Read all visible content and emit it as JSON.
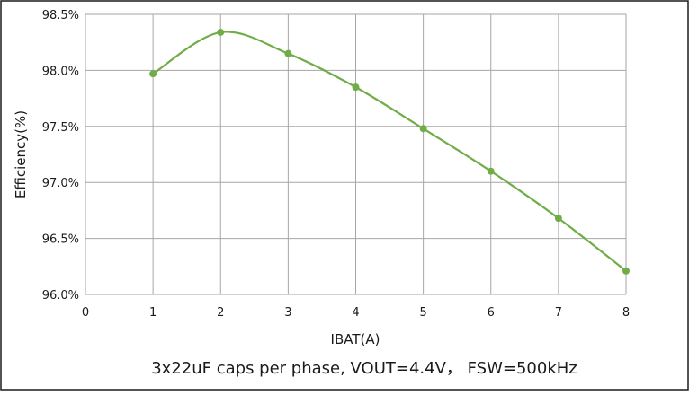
{
  "chart_data": {
    "type": "line",
    "title": "",
    "caption": "3x22uF caps per phase, VOUT=4.4V，  FSW=500kHz",
    "xlabel": "IBAT(A)",
    "ylabel": "Efficiency(%)",
    "xlim": [
      0,
      8
    ],
    "ylim": [
      96.0,
      98.5
    ],
    "x_ticks": [
      "0",
      "1",
      "2",
      "3",
      "4",
      "5",
      "6",
      "7",
      "8"
    ],
    "y_ticks": [
      "96.0%",
      "96.5%",
      "97.0%",
      "97.5%",
      "98.0%",
      "98.5%"
    ],
    "grid": true,
    "legend": "none",
    "series": [
      {
        "color": "#70ad47",
        "x": [
          1,
          2,
          3,
          4,
          5,
          6,
          7,
          8
        ],
        "y": [
          97.97,
          98.34,
          98.15,
          97.85,
          97.48,
          97.1,
          96.68,
          96.21
        ]
      }
    ]
  }
}
